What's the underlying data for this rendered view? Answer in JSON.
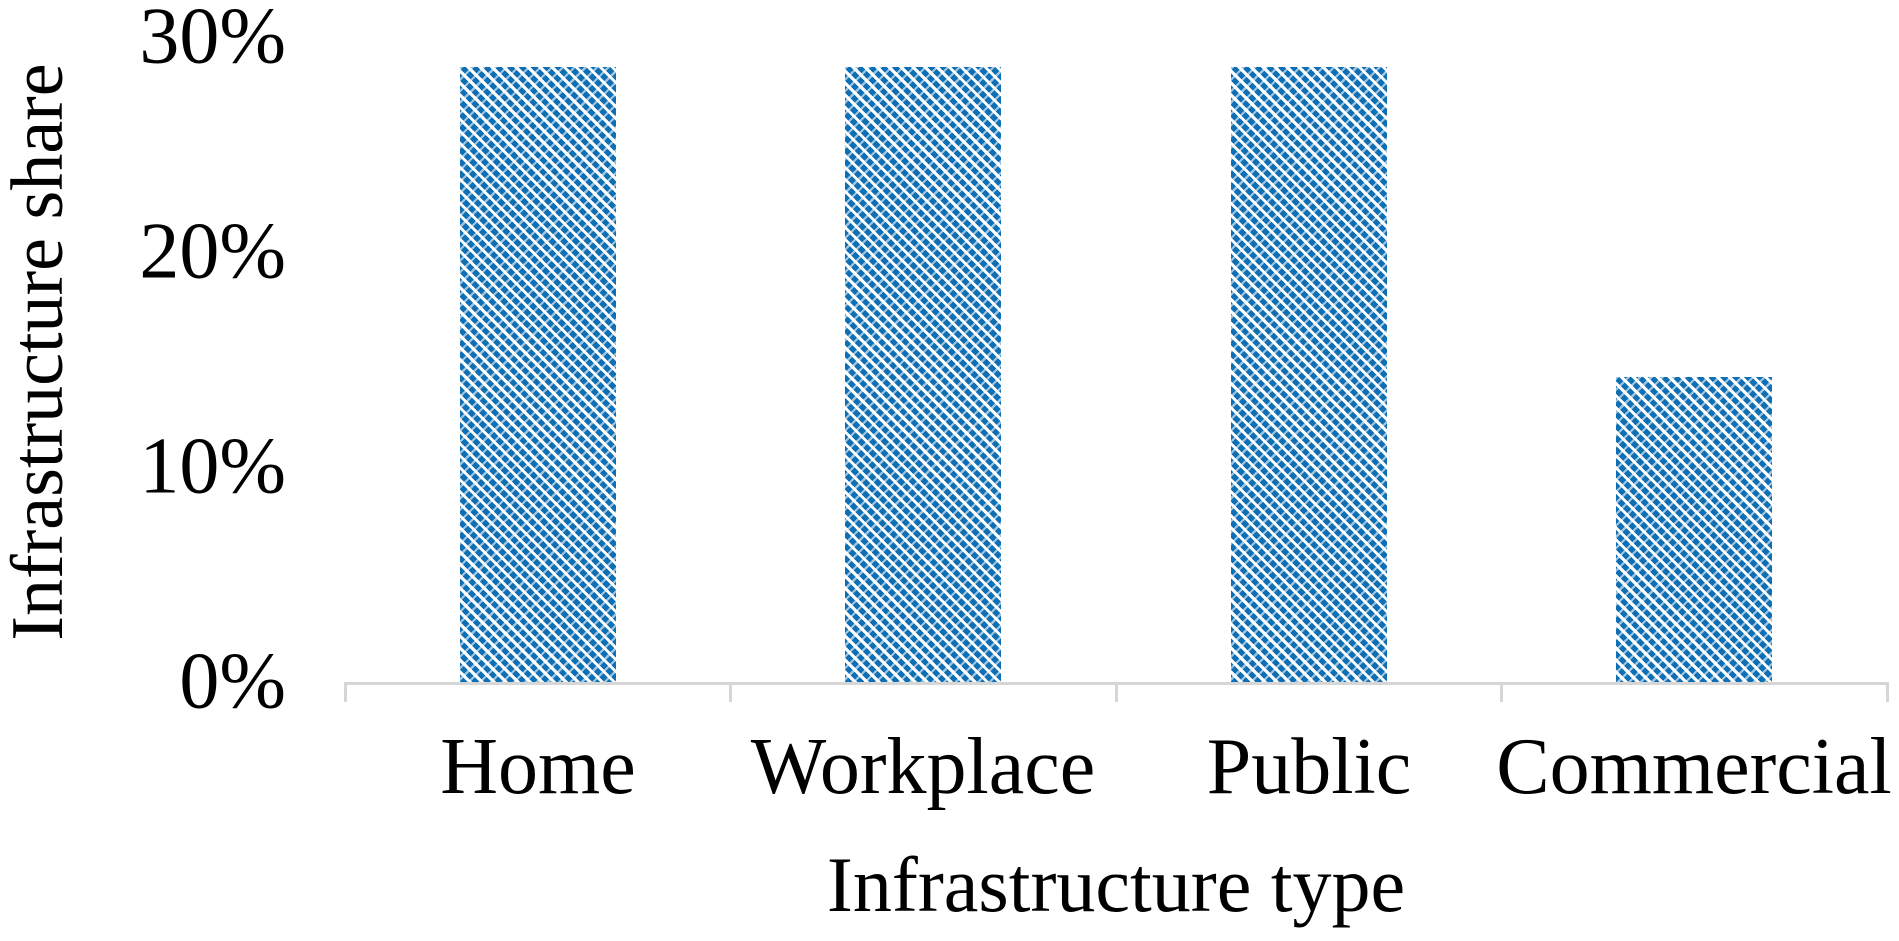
{
  "chart_data": {
    "type": "bar",
    "title": "",
    "categories": [
      "Home",
      "Workplace",
      "Public",
      "Commercial"
    ],
    "values": [
      28.6,
      28.6,
      28.6,
      14.2
    ],
    "values_unit": "percent",
    "xlabel": "Infrastructure type",
    "ylabel": "Infrastructure share",
    "ylim": [
      0,
      30
    ],
    "ytick_values": [
      0,
      10,
      20,
      30
    ],
    "ytick_labels": [
      "0%",
      "10%",
      "20%",
      "30%"
    ],
    "grid": false,
    "legend": "none",
    "bar_pattern": "dashed-diagonal-hatch",
    "colors": {
      "bar_blue": "#0f6fb5",
      "axis_gray": "#d6d6d6",
      "text_black": "#000000",
      "background": "#ffffff"
    }
  }
}
